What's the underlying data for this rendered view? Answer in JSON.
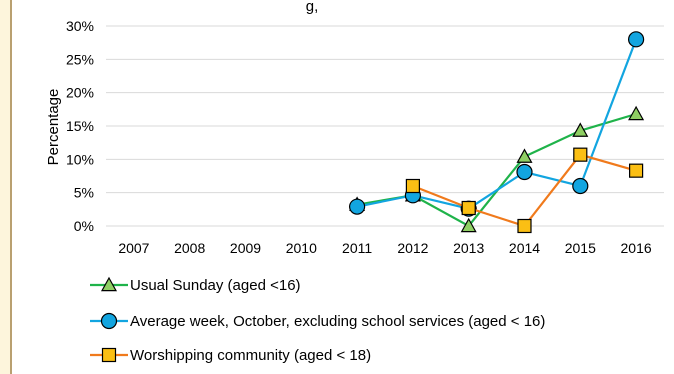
{
  "chart_data": {
    "type": "line",
    "title": "",
    "title_fragment": "g",
    "title_fragment_suffix": ",",
    "xlabel": "",
    "ylabel": "Percentage",
    "categories": [
      "2007",
      "2008",
      "2009",
      "2010",
      "2011",
      "2012",
      "2013",
      "2014",
      "2015",
      "2016"
    ],
    "ylim": [
      0,
      30
    ],
    "yticks": [
      0,
      5,
      10,
      15,
      20,
      25,
      30
    ],
    "ytick_labels": [
      "0%",
      "5%",
      "10%",
      "15%",
      "20%",
      "25%",
      "30%"
    ],
    "grid": true,
    "legend_position": "bottom",
    "series": [
      {
        "name": "Usual Sunday (aged <16)",
        "color": "#1fb34a",
        "marker": "triangle",
        "marker_fill": "#8fcf63",
        "values": [
          null,
          null,
          null,
          null,
          3.2,
          4.6,
          0.0,
          10.4,
          14.3,
          16.8
        ]
      },
      {
        "name": "Average week, October, excluding school services (aged < 16)",
        "color": "#12a5e0",
        "marker": "circle",
        "marker_fill": "#12a5e0",
        "values": [
          null,
          null,
          null,
          null,
          2.9,
          4.6,
          2.6,
          8.1,
          6.0,
          28.0
        ]
      },
      {
        "name": "Worshipping community (aged < 18)",
        "color": "#f07a1c",
        "marker": "square",
        "marker_fill": "#fbbf14",
        "values": [
          null,
          null,
          null,
          null,
          null,
          6.0,
          2.7,
          0.0,
          10.7,
          8.3
        ]
      }
    ]
  }
}
